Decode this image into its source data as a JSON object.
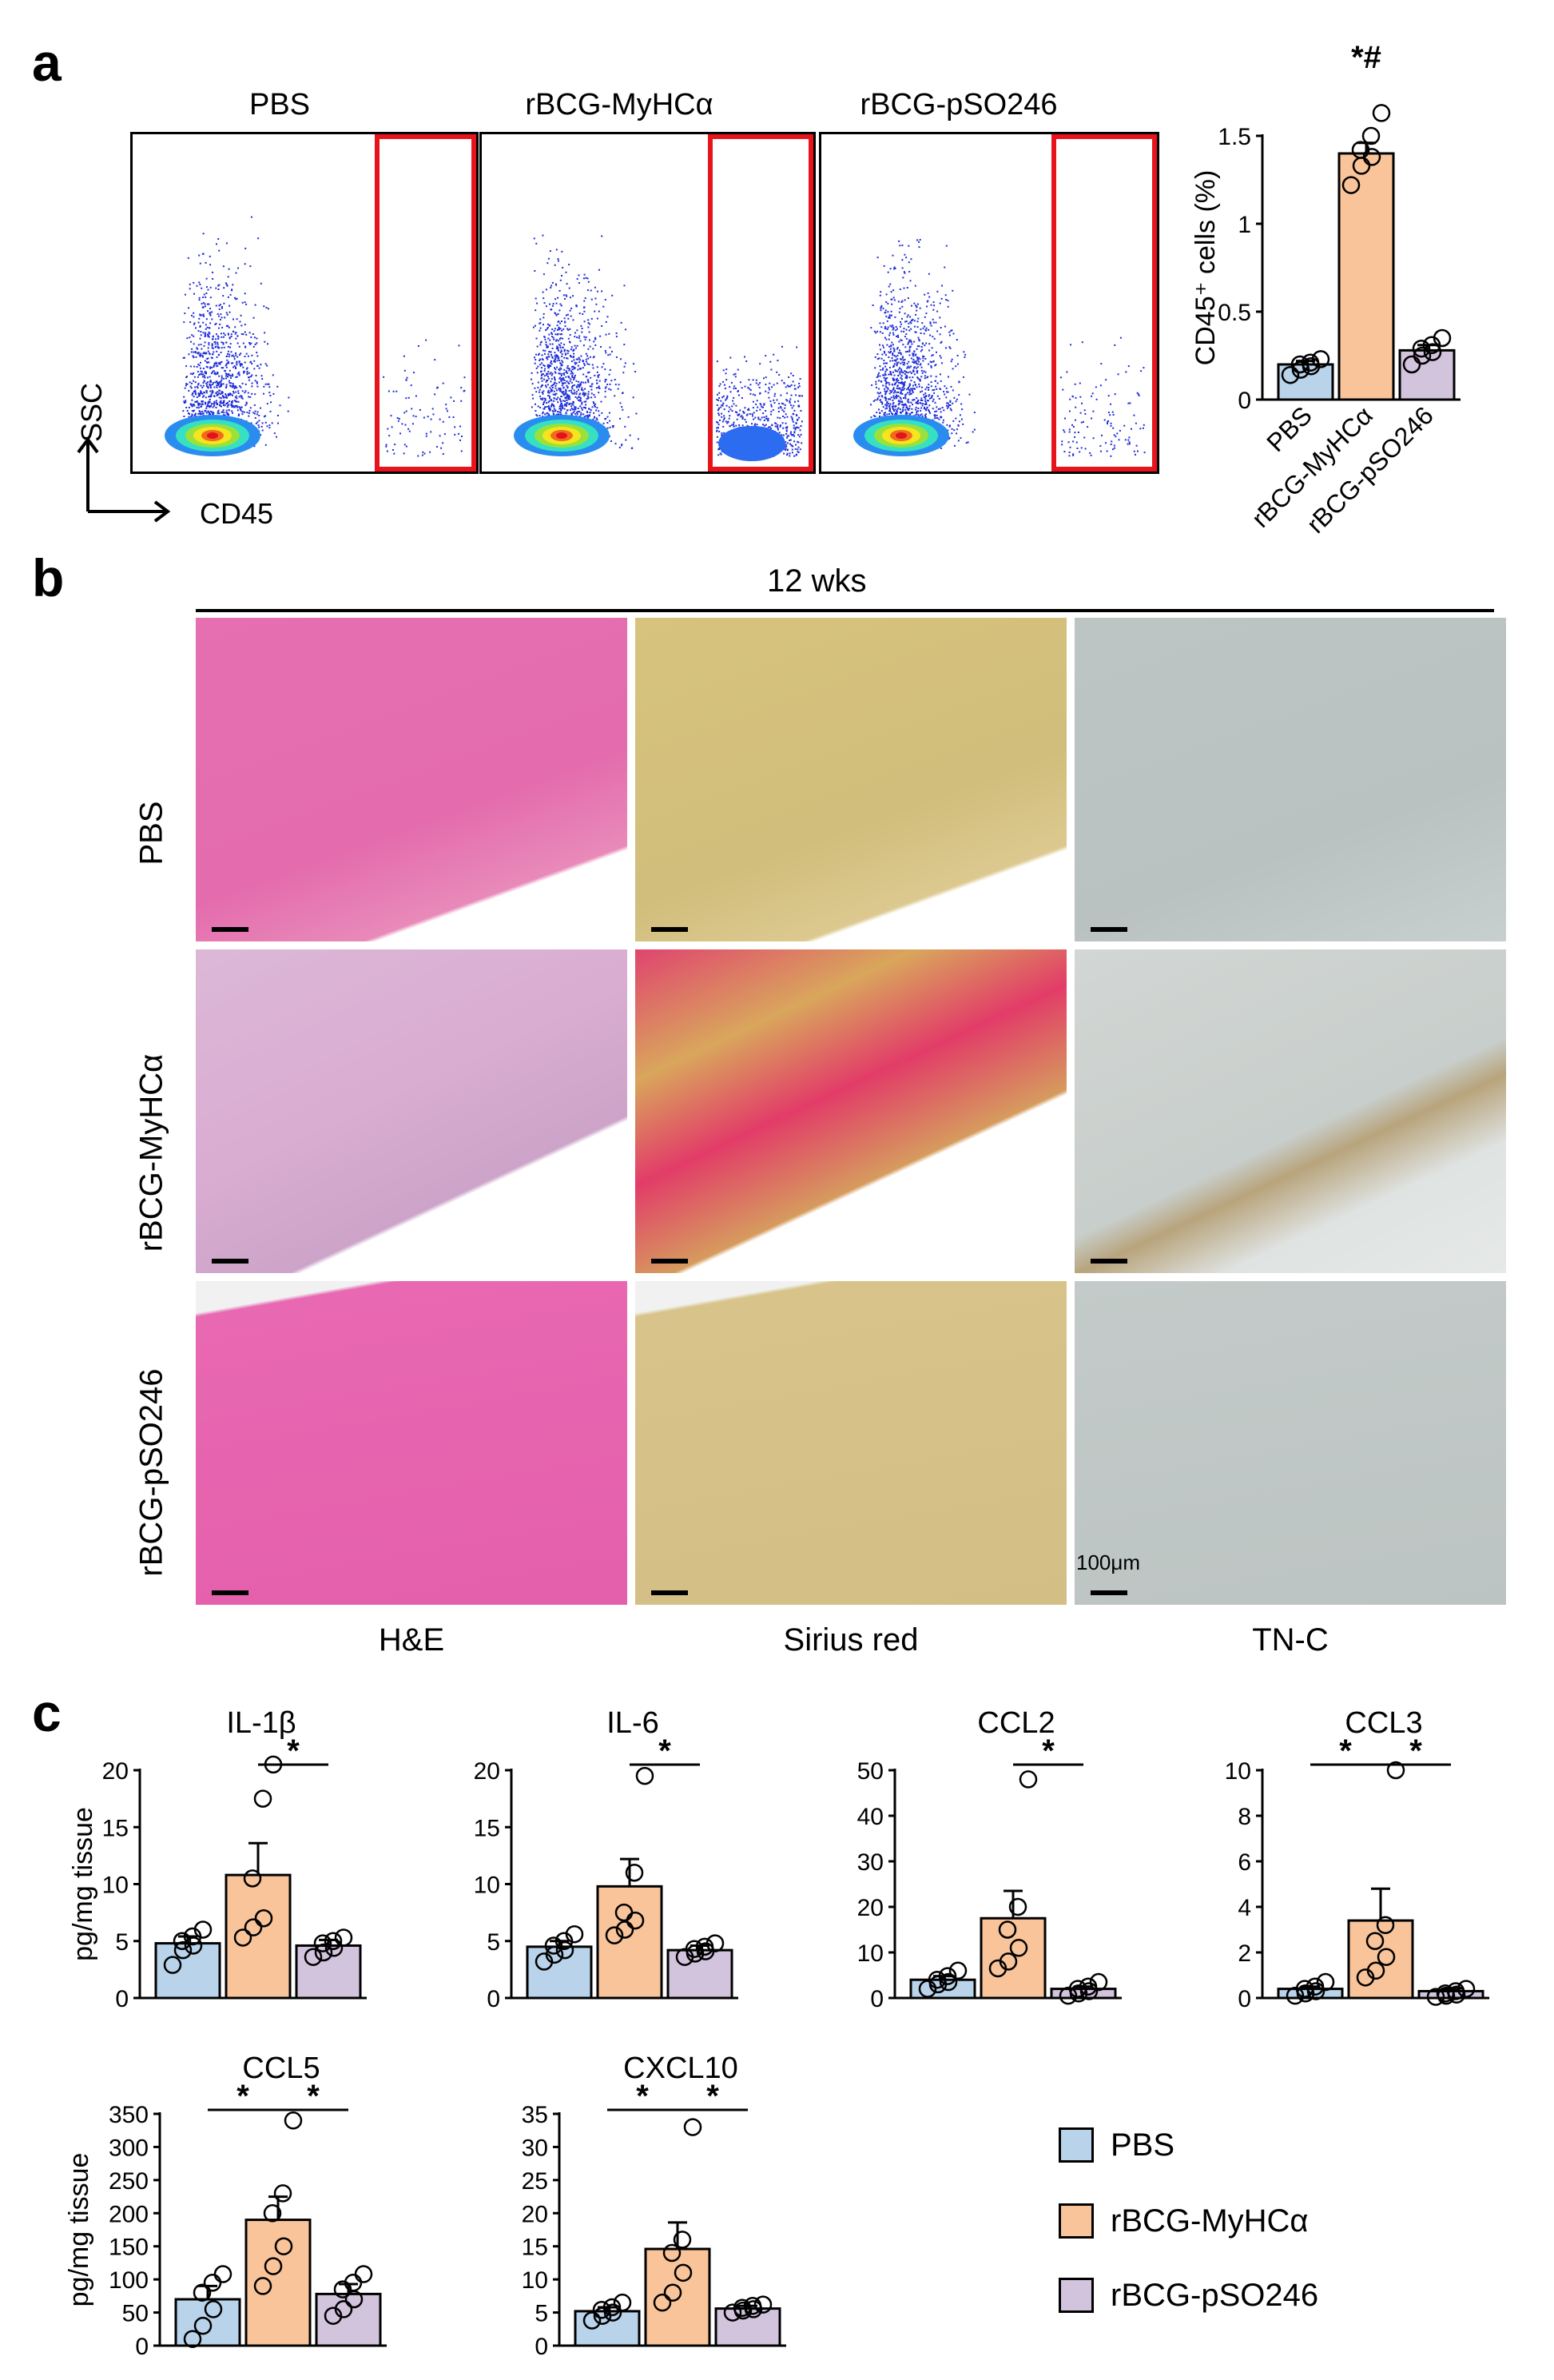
{
  "panels": {
    "a": "a",
    "b": "b",
    "c": "c"
  },
  "colors": {
    "pbs": "#b9d3ea",
    "mhc": "#f9c49a",
    "pso": "#d3c4de",
    "gate": "#e8141b"
  },
  "flow": {
    "titles": [
      "PBS",
      "rBCG-MyHCα",
      "rBCG-pSO246"
    ],
    "y_axis_label": "SSC",
    "x_axis_label": "CD45"
  },
  "histology": {
    "time_label": "12 wks",
    "rows": [
      "PBS",
      "rBCG-MyHCα",
      "rBCG-pSO246"
    ],
    "columns": [
      "H&E",
      "Sirius red",
      "TN-C"
    ],
    "scale_label": "100μm"
  },
  "legend": {
    "items": [
      "PBS",
      "rBCG-MyHCα",
      "rBCG-pSO246"
    ]
  },
  "chart_data": [
    {
      "type": "bar",
      "title": "",
      "ylabel": "CD45⁺ cells (%)",
      "categories": [
        "PBS",
        "rBCG-MyHCα",
        "rBCG-pSO246"
      ],
      "values": [
        0.2,
        1.4,
        0.28
      ],
      "errors": [
        0.02,
        0.06,
        0.03
      ],
      "points": [
        [
          0.14,
          0.17,
          0.19,
          0.2,
          0.21,
          0.23
        ],
        [
          1.22,
          1.33,
          1.38,
          1.42,
          1.5,
          1.63
        ],
        [
          0.2,
          0.25,
          0.27,
          0.29,
          0.31,
          0.35
        ]
      ],
      "ylim": [
        0,
        1.5
      ],
      "yticks": [
        0,
        0.5,
        1,
        1.5
      ],
      "ytick_labels": [
        "0",
        "0.5",
        "1",
        "1.5"
      ],
      "annotation": "*#"
    },
    {
      "type": "bar",
      "title": "IL-1β",
      "ylabel": "pg/mg tissue",
      "categories": [
        "PBS",
        "rBCG-MyHCα",
        "rBCG-pSO246"
      ],
      "values": [
        4.8,
        10.8,
        4.6
      ],
      "errors": [
        0.6,
        2.8,
        0.5
      ],
      "points": [
        [
          2.9,
          4.2,
          4.6,
          5.0,
          5.4,
          6.0
        ],
        [
          5.3,
          6.2,
          7.0,
          10.5,
          17.5,
          20.5
        ],
        [
          3.6,
          4.0,
          4.4,
          4.8,
          5.0,
          5.3
        ]
      ],
      "ylim": [
        0,
        20
      ],
      "yticks": [
        0,
        5,
        10,
        15,
        20
      ],
      "ytick_labels": [
        "0",
        "5",
        "10",
        "15",
        "20"
      ],
      "sig": [
        "*"
      ]
    },
    {
      "type": "bar",
      "title": "IL-6",
      "ylabel": "",
      "categories": [
        "PBS",
        "rBCG-MyHCα",
        "rBCG-pSO246"
      ],
      "values": [
        4.5,
        9.8,
        4.2
      ],
      "errors": [
        0.5,
        2.4,
        0.4
      ],
      "points": [
        [
          3.2,
          3.8,
          4.2,
          4.6,
          5.0,
          5.6
        ],
        [
          5.5,
          6.0,
          6.8,
          7.5,
          11.0,
          19.5
        ],
        [
          3.6,
          3.9,
          4.1,
          4.3,
          4.5,
          4.8
        ]
      ],
      "ylim": [
        0,
        20
      ],
      "yticks": [
        0,
        5,
        10,
        15,
        20
      ],
      "ytick_labels": [
        "0",
        "5",
        "10",
        "15",
        "20"
      ],
      "sig": [
        "*"
      ]
    },
    {
      "type": "bar",
      "title": "CCL2",
      "ylabel": "",
      "categories": [
        "PBS",
        "rBCG-MyHCα",
        "rBCG-pSO246"
      ],
      "values": [
        4.0,
        17.5,
        2.0
      ],
      "errors": [
        0.8,
        6.0,
        0.5
      ],
      "points": [
        [
          2.0,
          3.0,
          3.5,
          4.0,
          4.8,
          6.0
        ],
        [
          6.5,
          8.0,
          11.0,
          15.0,
          20.0,
          48.0
        ],
        [
          0.5,
          1.0,
          1.5,
          2.0,
          2.5,
          3.5
        ]
      ],
      "ylim": [
        0,
        50
      ],
      "yticks": [
        0,
        10,
        20,
        30,
        40,
        50
      ],
      "ytick_labels": [
        "0",
        "10",
        "20",
        "30",
        "40",
        "50"
      ],
      "sig": [
        "*"
      ]
    },
    {
      "type": "bar",
      "title": "CCL3",
      "ylabel": "",
      "categories": [
        "PBS",
        "rBCG-MyHCα",
        "rBCG-pSO246"
      ],
      "values": [
        0.4,
        3.4,
        0.3
      ],
      "errors": [
        0.1,
        1.4,
        0.1
      ],
      "points": [
        [
          0.1,
          0.2,
          0.3,
          0.4,
          0.5,
          0.7
        ],
        [
          0.9,
          1.2,
          1.8,
          2.5,
          3.2,
          10.0
        ],
        [
          0.05,
          0.1,
          0.15,
          0.2,
          0.3,
          0.4
        ]
      ],
      "ylim": [
        0,
        10
      ],
      "yticks": [
        0,
        2,
        4,
        6,
        8,
        10
      ],
      "ytick_labels": [
        "0",
        "2",
        "4",
        "6",
        "8",
        "10"
      ],
      "sig": [
        "*",
        "*"
      ]
    },
    {
      "type": "bar",
      "title": "CCL5",
      "ylabel": "pg/mg tissue",
      "categories": [
        "PBS",
        "rBCG-MyHCα",
        "rBCG-pSO246"
      ],
      "values": [
        70,
        190,
        78
      ],
      "errors": [
        20,
        35,
        15
      ],
      "points": [
        [
          10,
          30,
          55,
          80,
          95,
          108
        ],
        [
          90,
          120,
          150,
          200,
          230,
          340
        ],
        [
          45,
          55,
          70,
          85,
          95,
          108
        ]
      ],
      "ylim": [
        0,
        350
      ],
      "yticks": [
        0,
        50,
        100,
        150,
        200,
        250,
        300,
        350
      ],
      "ytick_labels": [
        "0",
        "50",
        "100",
        "150",
        "200",
        "250",
        "300",
        "350"
      ],
      "sig": [
        "*",
        "*"
      ]
    },
    {
      "type": "bar",
      "title": "CXCL10",
      "ylabel": "",
      "categories": [
        "PBS",
        "rBCG-MyHCα",
        "rBCG-pSO246"
      ],
      "values": [
        5.2,
        14.6,
        5.6
      ],
      "errors": [
        0.6,
        4.0,
        0.4
      ],
      "points": [
        [
          3.8,
          4.5,
          5.0,
          5.4,
          5.8,
          6.5
        ],
        [
          6.5,
          8.0,
          11.0,
          14.0,
          16.0,
          33.0
        ],
        [
          5.0,
          5.3,
          5.5,
          5.7,
          6.0,
          6.2
        ]
      ],
      "ylim": [
        0,
        35
      ],
      "yticks": [
        0,
        5,
        10,
        15,
        20,
        25,
        30,
        35
      ],
      "ytick_labels": [
        "0",
        "5",
        "10",
        "15",
        "20",
        "25",
        "30",
        "35"
      ],
      "sig": [
        "*",
        "*"
      ]
    }
  ]
}
